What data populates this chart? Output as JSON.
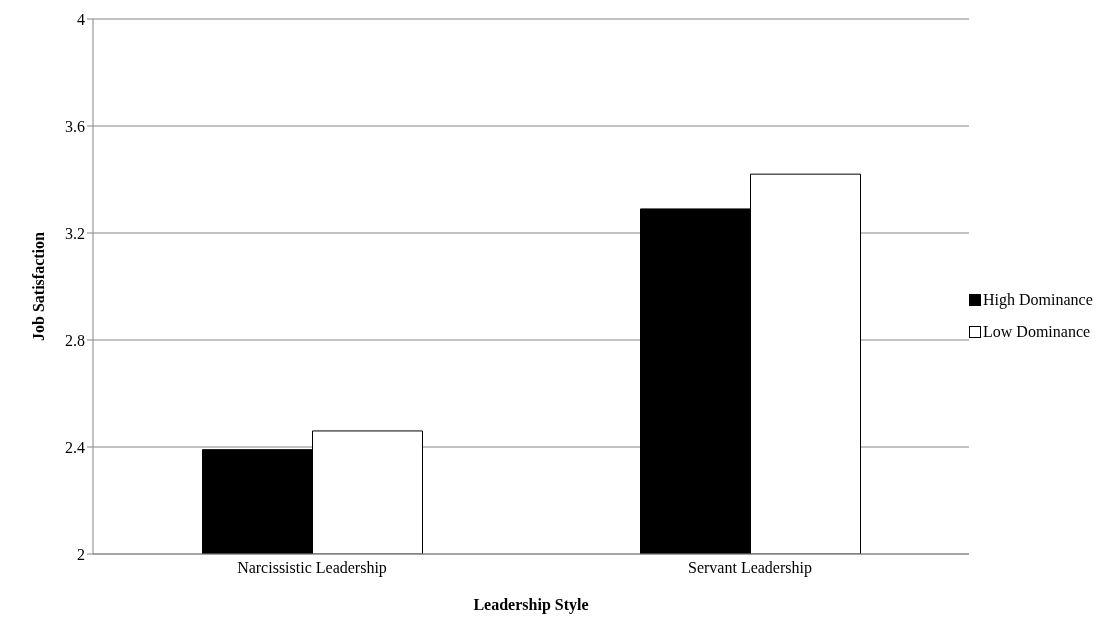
{
  "chart_data": {
    "type": "bar",
    "categories": [
      "Narcissistic Leadership",
      "Servant Leadership"
    ],
    "series": [
      {
        "name": "High Dominance",
        "color": "#000000",
        "values": [
          2.39,
          3.29
        ]
      },
      {
        "name": "Low Dominance",
        "color": "#ffffff",
        "values": [
          2.46,
          3.42
        ]
      }
    ],
    "xlabel": "Leadership Style",
    "ylabel": "Job Satisfaction",
    "ylim": [
      2,
      4
    ],
    "yticks": [
      2,
      2.4,
      2.8,
      3.2,
      3.6,
      4
    ],
    "grid": "y",
    "legend": "right"
  }
}
